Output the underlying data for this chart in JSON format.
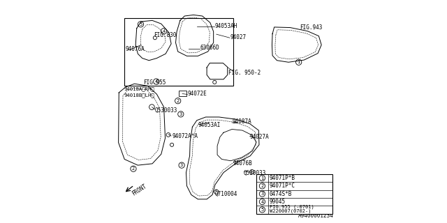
{
  "bg_color": "#ffffff",
  "diagram_id": "A9400001234",
  "legend_items": [
    {
      "num": "1",
      "text": "94071P*B"
    },
    {
      "num": "2",
      "text": "94071P*C"
    },
    {
      "num": "3",
      "text": "0474S*B"
    },
    {
      "num": "4",
      "text": "99045"
    },
    {
      "num": "5",
      "text": "FIG.955 (-0701)\nW220007(0702-)"
    }
  ],
  "line_color": "#000000",
  "text_color": "#000000",
  "font_size": 5.5
}
